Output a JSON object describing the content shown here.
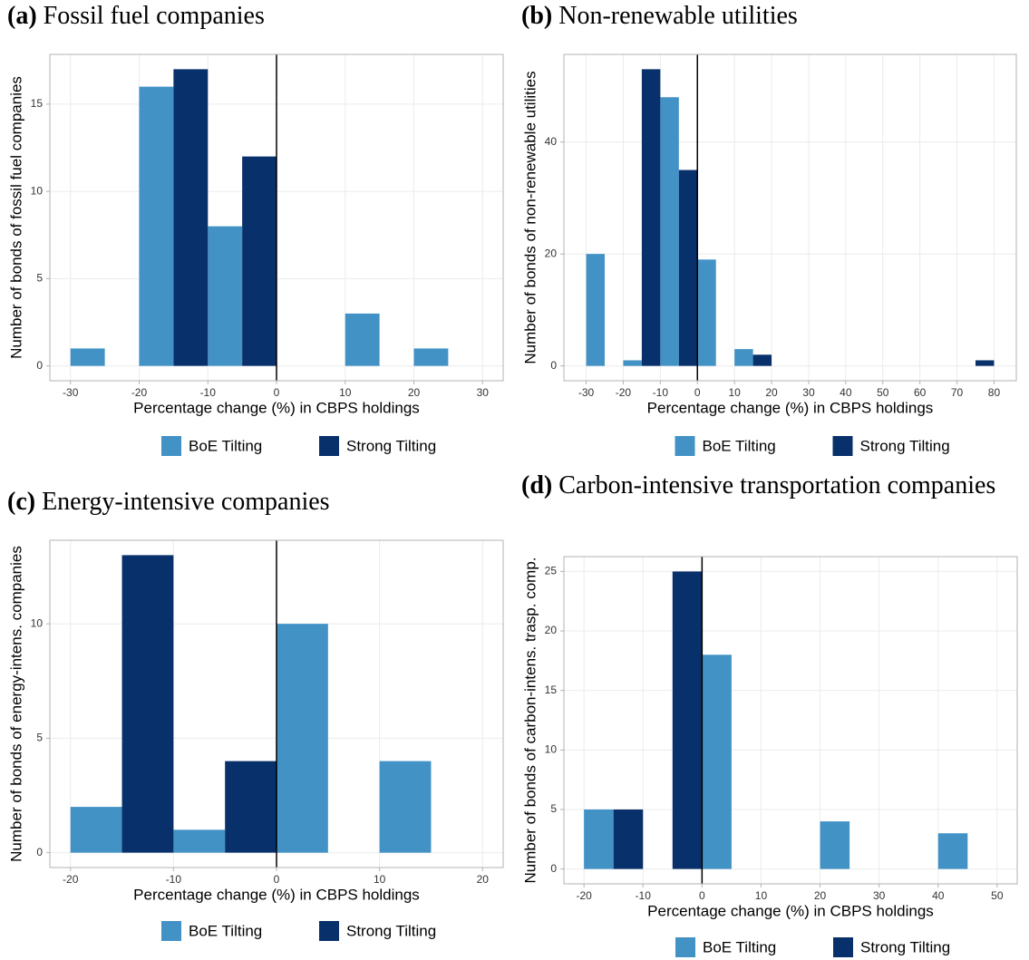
{
  "chart_data": [
    {
      "type": "histogram",
      "label": "(a)",
      "title": "Fossil fuel companies",
      "x_label": "Percentage change (%) in CBPS holdings",
      "y_label": "Number of bonds of fossil fuel companies",
      "xlim": [
        -33,
        33
      ],
      "xticks": [
        -30,
        -20,
        -10,
        0,
        10,
        20,
        30
      ],
      "ylim": [
        -0.85,
        17.85
      ],
      "yticks": [
        0,
        5,
        10,
        15
      ],
      "vline": 0,
      "grid": true,
      "legend": "bottom",
      "series": [
        {
          "name": "BoE Tilting",
          "color": "#4292c6",
          "bins": [
            -30,
            -25,
            -20,
            -15,
            -10,
            -5,
            0,
            5,
            10,
            15,
            20,
            25
          ],
          "values": [
            1,
            0,
            16,
            0,
            8,
            0,
            0,
            0,
            3,
            0,
            1
          ]
        },
        {
          "name": "Strong Tilting",
          "color": "#08306b",
          "bins": [
            -15,
            -10,
            -5,
            0
          ],
          "values": [
            17,
            0,
            12
          ]
        }
      ]
    },
    {
      "type": "histogram",
      "label": "(b)",
      "title": "Non-renewable utilities",
      "x_label": "Percentage change (%) in CBPS holdings",
      "y_label": "Number of bonds of non-renewable utilities",
      "xlim": [
        -36,
        86
      ],
      "xticks": [
        -30,
        -20,
        -10,
        0,
        10,
        20,
        30,
        40,
        50,
        60,
        70,
        80
      ],
      "ylim": [
        -2.65,
        55.65
      ],
      "yticks": [
        0,
        20,
        40
      ],
      "vline": 0,
      "grid": true,
      "legend": "bottom",
      "series": [
        {
          "name": "BoE Tilting",
          "color": "#4292c6",
          "bins": [
            -30,
            -25,
            -20,
            -15,
            -10,
            -5,
            0,
            5,
            10,
            15
          ],
          "values": [
            20,
            0,
            1,
            0,
            48,
            0,
            19,
            0,
            3
          ]
        },
        {
          "name": "Strong Tilting",
          "color": "#08306b",
          "bins": [
            -15,
            -10,
            -5,
            0,
            5,
            10,
            15,
            20,
            25,
            30,
            35,
            40,
            45,
            50,
            55,
            60,
            65,
            70,
            75,
            80
          ],
          "values": [
            53,
            0,
            35,
            0,
            0,
            0,
            2,
            0,
            0,
            0,
            0,
            0,
            0,
            0,
            0,
            0,
            0,
            0,
            1
          ]
        }
      ]
    },
    {
      "type": "histogram",
      "label": "(c)",
      "title": "Energy-intensive companies",
      "x_label": "Percentage change (%) in CBPS holdings",
      "y_label": "Number of bonds of energy-intens. companies",
      "xlim": [
        -22,
        22
      ],
      "xticks": [
        -20,
        -10,
        0,
        10,
        20
      ],
      "ylim": [
        -0.65,
        13.65
      ],
      "yticks": [
        0,
        5,
        10
      ],
      "vline": 0,
      "grid": true,
      "legend": "bottom",
      "series": [
        {
          "name": "BoE Tilting",
          "color": "#4292c6",
          "bins": [
            -20,
            -15,
            -10,
            -5,
            0,
            5,
            10,
            15
          ],
          "values": [
            2,
            0,
            1,
            0,
            10,
            0,
            4
          ]
        },
        {
          "name": "Strong Tilting",
          "color": "#08306b",
          "bins": [
            -15,
            -10,
            -5,
            0
          ],
          "values": [
            13,
            0,
            4
          ]
        }
      ]
    },
    {
      "type": "histogram",
      "label": "(d)",
      "title": "Carbon-intensive transportation companies",
      "x_label": "Percentage change (%) in CBPS holdings",
      "y_label": "Number of bonds of carbon-intens. trasp. comp.",
      "xlim": [
        -23.4,
        53.4
      ],
      "xticks": [
        -20,
        -10,
        0,
        10,
        20,
        30,
        40,
        50
      ],
      "ylim": [
        -1.25,
        26.25
      ],
      "yticks": [
        0,
        5,
        10,
        15,
        20,
        25
      ],
      "vline": 0,
      "grid": true,
      "legend": "bottom",
      "series": [
        {
          "name": "BoE Tilting",
          "color": "#4292c6",
          "bins": [
            -20,
            -15,
            -10,
            -5,
            0,
            5,
            10,
            15,
            20,
            25,
            30,
            35,
            40,
            45
          ],
          "values": [
            5,
            0,
            0,
            0,
            18,
            0,
            0,
            0,
            4,
            0,
            0,
            0,
            3
          ]
        },
        {
          "name": "Strong Tilting",
          "color": "#08306b",
          "bins": [
            -15,
            -10,
            -5,
            0
          ],
          "values": [
            5,
            0,
            25
          ]
        }
      ]
    }
  ]
}
